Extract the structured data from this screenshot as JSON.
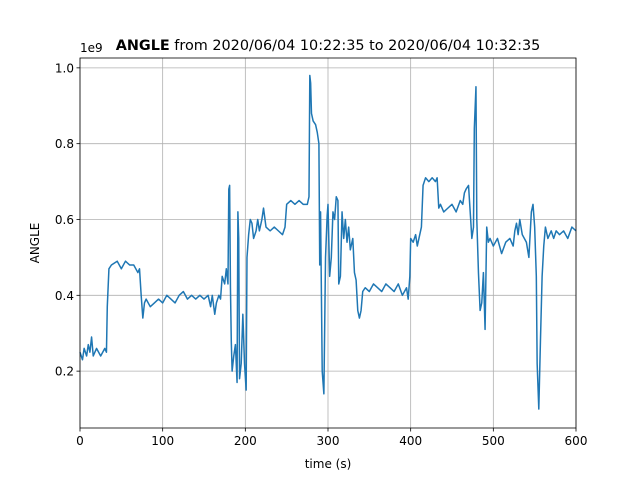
{
  "chart_data": {
    "type": "line",
    "title_bold": "ANGLE",
    "title": "from 2020/06/04 10:22:35 to 2020/06/04 10:32:35",
    "offset_label": "1e9",
    "x_label": "time (s)",
    "y_label": "ANGLE",
    "xlim": [
      0,
      600
    ],
    "xticks": [
      0,
      100,
      200,
      300,
      400,
      500,
      600
    ],
    "ylim": [
      0.05,
      1.026
    ],
    "yticks": [
      0.2,
      0.4,
      0.6,
      0.8,
      {
        "value": 1.0,
        "label": "1.0"
      }
    ],
    "grid": true,
    "series": [
      {
        "color": "#1f77b4",
        "x": [
          0,
          3,
          5,
          8,
          10,
          12,
          14,
          16,
          20,
          25,
          30,
          32,
          33,
          35,
          38,
          45,
          50,
          55,
          60,
          65,
          70,
          72,
          74,
          76,
          78,
          80,
          85,
          90,
          95,
          100,
          105,
          110,
          115,
          120,
          125,
          130,
          135,
          140,
          145,
          150,
          155,
          158,
          160,
          163,
          165,
          168,
          170,
          172,
          175,
          177,
          179,
          180,
          181,
          182,
          183,
          184,
          186,
          188,
          190,
          191,
          192,
          193,
          195,
          197,
          199,
          201,
          202,
          204,
          206,
          208,
          210,
          213,
          215,
          217,
          220,
          222,
          225,
          230,
          235,
          240,
          245,
          248,
          250,
          255,
          260,
          265,
          270,
          275,
          277,
          278,
          279,
          280,
          282,
          285,
          287,
          289,
          290,
          291,
          293,
          295,
          297,
          299,
          300,
          302,
          304,
          306,
          308,
          310,
          312,
          313,
          315,
          317,
          319,
          321,
          323,
          325,
          327,
          330,
          332,
          334,
          336,
          338,
          340,
          342,
          345,
          350,
          355,
          360,
          365,
          370,
          375,
          380,
          385,
          390,
          395,
          397,
          399,
          400,
          403,
          406,
          408,
          410,
          413,
          415,
          418,
          422,
          426,
          430,
          432,
          434,
          436,
          440,
          445,
          450,
          455,
          460,
          463,
          465,
          467,
          470,
          472,
          474,
          476,
          477,
          479,
          480,
          482,
          484,
          486,
          488,
          490,
          492,
          494,
          496,
          500,
          505,
          510,
          515,
          520,
          524,
          526,
          528,
          530,
          532,
          535,
          540,
          543,
          545,
          546,
          548,
          550,
          552,
          553,
          555,
          557,
          559,
          561,
          563,
          566,
          570,
          573,
          576,
          580,
          585,
          590,
          595,
          600
        ],
        "values": [
          0.25,
          0.23,
          0.26,
          0.24,
          0.27,
          0.25,
          0.29,
          0.24,
          0.26,
          0.24,
          0.26,
          0.25,
          0.37,
          0.47,
          0.48,
          0.49,
          0.47,
          0.49,
          0.48,
          0.48,
          0.46,
          0.47,
          0.4,
          0.34,
          0.38,
          0.39,
          0.37,
          0.38,
          0.39,
          0.38,
          0.4,
          0.39,
          0.38,
          0.4,
          0.41,
          0.39,
          0.4,
          0.39,
          0.4,
          0.39,
          0.4,
          0.37,
          0.4,
          0.35,
          0.38,
          0.4,
          0.39,
          0.45,
          0.43,
          0.47,
          0.43,
          0.68,
          0.69,
          0.42,
          0.28,
          0.2,
          0.24,
          0.27,
          0.17,
          0.62,
          0.55,
          0.18,
          0.22,
          0.35,
          0.22,
          0.15,
          0.5,
          0.56,
          0.6,
          0.59,
          0.55,
          0.57,
          0.6,
          0.57,
          0.6,
          0.63,
          0.58,
          0.57,
          0.58,
          0.57,
          0.56,
          0.58,
          0.64,
          0.65,
          0.64,
          0.65,
          0.64,
          0.64,
          0.66,
          0.98,
          0.96,
          0.88,
          0.86,
          0.85,
          0.83,
          0.8,
          0.48,
          0.62,
          0.2,
          0.14,
          0.5,
          0.61,
          0.64,
          0.45,
          0.5,
          0.62,
          0.6,
          0.66,
          0.65,
          0.43,
          0.45,
          0.62,
          0.55,
          0.6,
          0.54,
          0.58,
          0.52,
          0.55,
          0.46,
          0.44,
          0.36,
          0.34,
          0.36,
          0.41,
          0.42,
          0.41,
          0.43,
          0.42,
          0.41,
          0.43,
          0.42,
          0.41,
          0.43,
          0.4,
          0.42,
          0.39,
          0.45,
          0.55,
          0.54,
          0.56,
          0.53,
          0.55,
          0.58,
          0.69,
          0.71,
          0.7,
          0.71,
          0.7,
          0.71,
          0.63,
          0.64,
          0.62,
          0.63,
          0.64,
          0.62,
          0.65,
          0.64,
          0.67,
          0.68,
          0.69,
          0.62,
          0.55,
          0.58,
          0.84,
          0.95,
          0.6,
          0.46,
          0.36,
          0.38,
          0.46,
          0.31,
          0.58,
          0.54,
          0.55,
          0.53,
          0.55,
          0.51,
          0.54,
          0.55,
          0.53,
          0.57,
          0.59,
          0.56,
          0.6,
          0.56,
          0.54,
          0.5,
          0.58,
          0.62,
          0.64,
          0.58,
          0.45,
          0.22,
          0.1,
          0.28,
          0.45,
          0.53,
          0.58,
          0.55,
          0.57,
          0.55,
          0.57,
          0.56,
          0.57,
          0.55,
          0.58,
          0.57
        ]
      }
    ]
  }
}
